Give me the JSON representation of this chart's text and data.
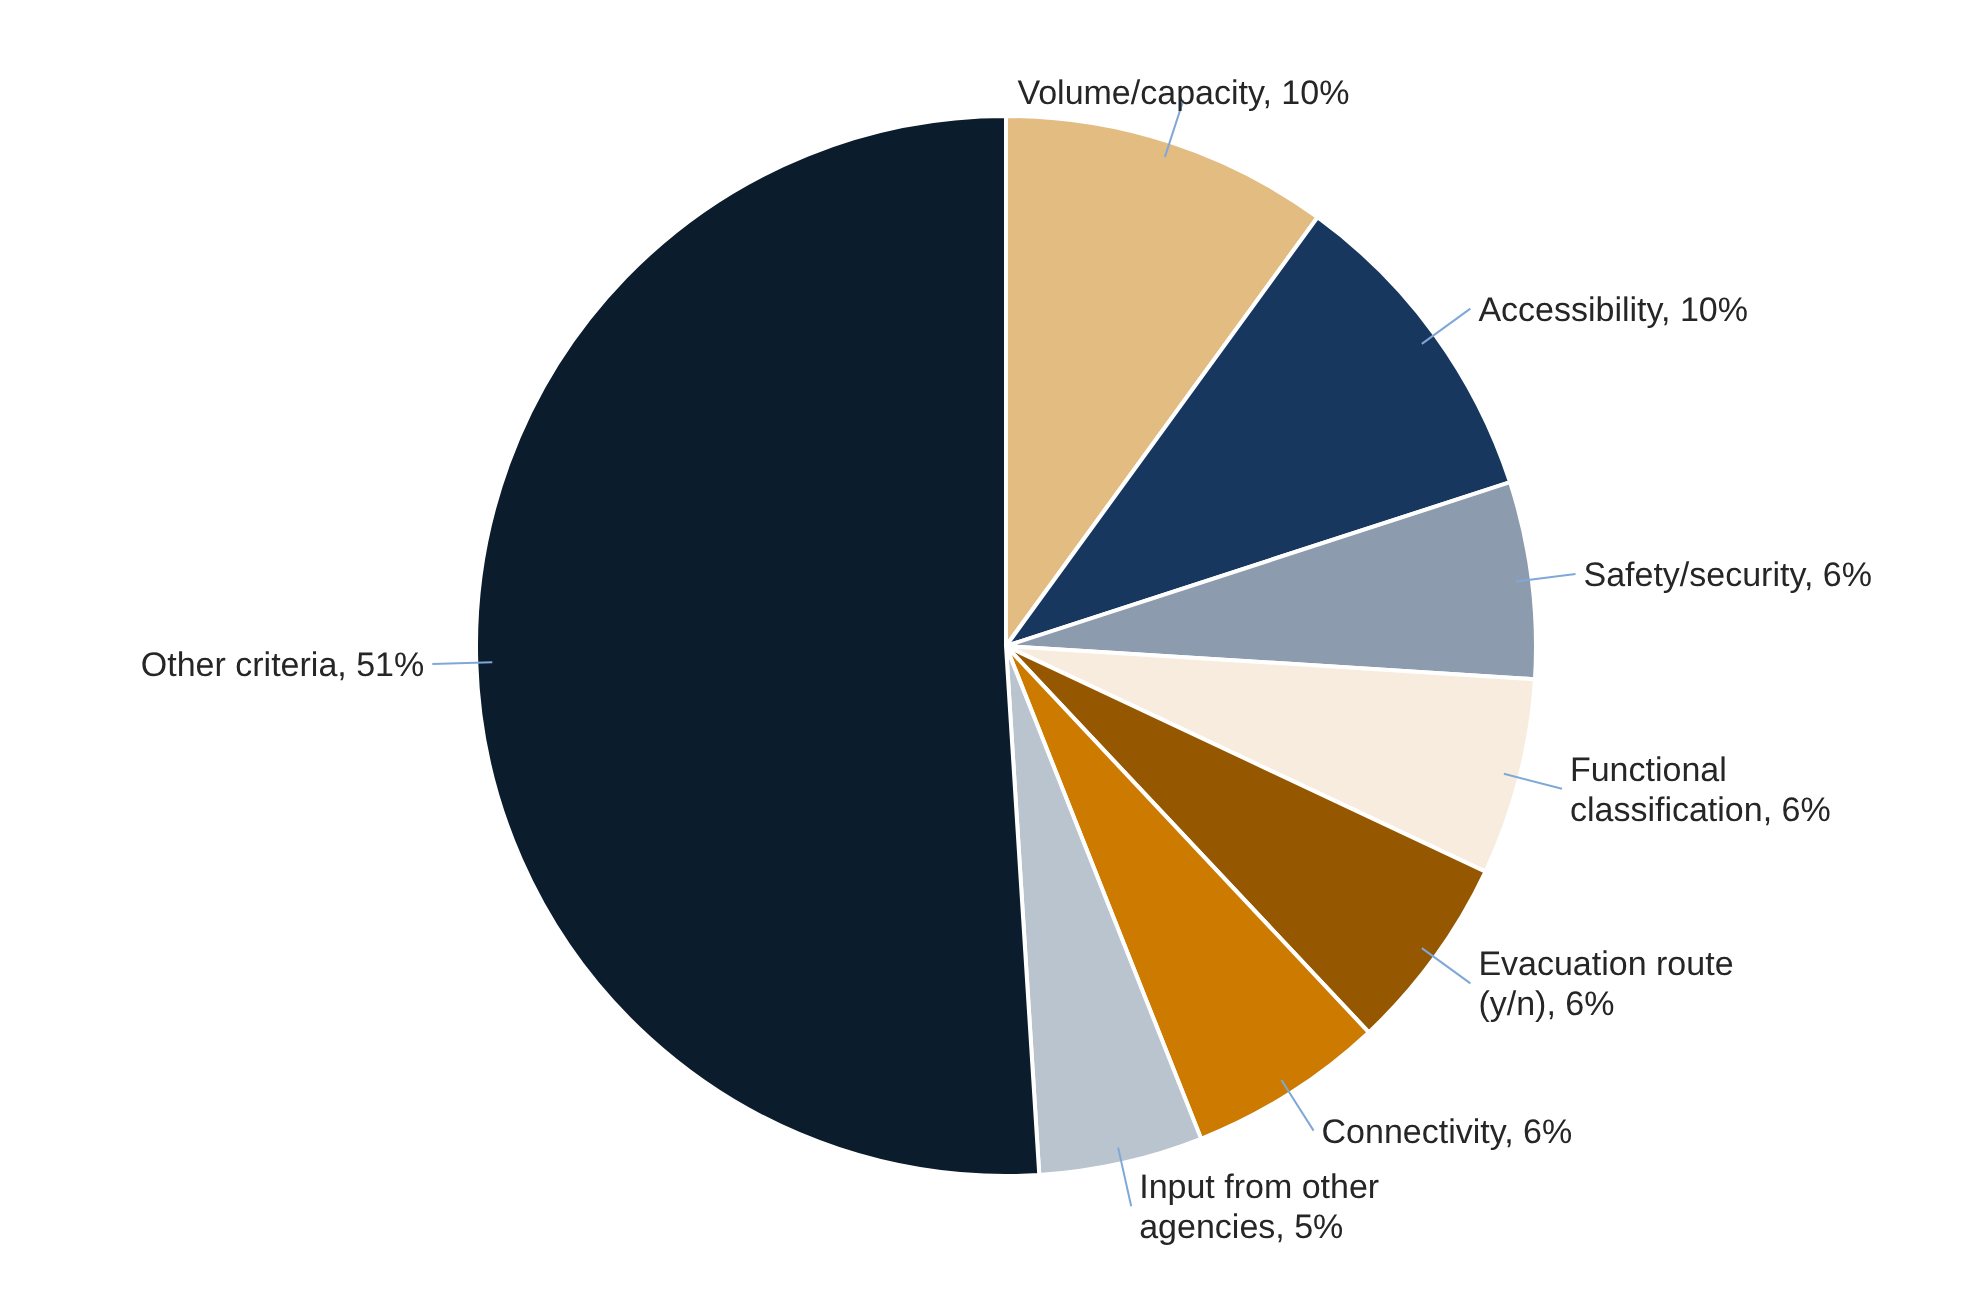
{
  "chart_data": {
    "type": "pie",
    "categories": [
      "Volume/capacity",
      "Accessibility",
      "Safety/security",
      "Functional classification",
      "Evacuation route (y/n)",
      "Connectivity",
      "Input from other agencies",
      "Other criteria"
    ],
    "values": [
      10,
      10,
      6,
      6,
      6,
      6,
      5,
      51
    ],
    "colors": [
      "#e3bc82",
      "#17375e",
      "#8c9cae",
      "#f7ecdd",
      "#955800",
      "#cd7a00",
      "#b9c4ce",
      "#0b1c2c"
    ],
    "value_labels": [
      "10%",
      "10%",
      "6%",
      "6%",
      "6%",
      "6%",
      "5%",
      "51%"
    ],
    "legend": false
  }
}
